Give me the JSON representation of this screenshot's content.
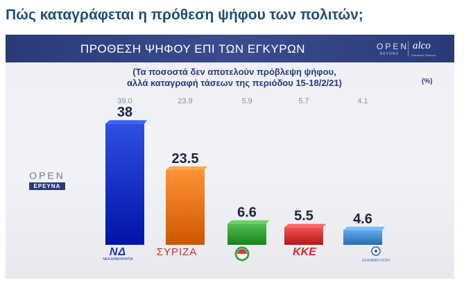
{
  "headline": "Πώς καταγράφεται η πρόθεση ψήφου των πολιτών;",
  "panel": {
    "title": "ΠΡΟΘΕΣΗ ΨΗΦΟΥ ΕΠΙ ΤΩΝ ΕΓΚΥΡΩΝ",
    "brand_open": "OPEN",
    "brand_open_sub": "BEYOND",
    "brand_alco": "alco",
    "brand_alco_sub": "Στατιστικές Έρευνες",
    "subtitle_line1": "(Τα ποσοστά δεν αποτελούν πρόβλεψη ψήφου,",
    "subtitle_line2": "αλλά καταγραφή τάσεων της περιόδου 15-18/2/21)",
    "unit": "(%)",
    "open_logo_word": "OPEN",
    "open_logo_tag": "ΕΡΕΥΝΑ"
  },
  "parties": {
    "nd_word": "ΝΔ",
    "nd_sub": "ΝΕΑ ΔΗΜΟΚΡΑΤΙΑ",
    "syriza": "ΣΥΡΙΖΑ",
    "kke": "ΚΚΕ",
    "el_sub": "ΕΛΛΗΝΙΚΗ ΛΥΣΗ"
  },
  "colors": {
    "nd": "#1636c9",
    "syriza": "#f07a1c",
    "pasok": "#3aa53a",
    "kke": "#d83a3a",
    "elliniki_lysi": "#4a8fd4"
  },
  "chart_data": {
    "type": "bar",
    "title": "ΠΡΟΘΕΣΗ ΨΗΦΟΥ ΕΠΙ ΤΩΝ ΕΓΚΥΡΩΝ",
    "categories": [
      "ΝΔ",
      "ΣΥΡΙΖΑ",
      "ΚΙΝΑΛ",
      "ΚΚΕ",
      "Ελληνική Λύση"
    ],
    "series": [
      {
        "name": "",
        "values": [
          38,
          23.5,
          6.6,
          5.5,
          4.6
        ],
        "labels": [
          "38",
          "23.5",
          "6.6",
          "5.5",
          "4.6"
        ]
      }
    ],
    "previous_values": [
      39.0,
      23.9,
      5.9,
      5.7,
      4.1
    ],
    "previous_labels": [
      "39.0",
      "23.9",
      "5.9",
      "5.7",
      "4.1"
    ],
    "ylim": [
      0,
      40
    ],
    "unit": "%",
    "grid": false,
    "legend": "none"
  }
}
